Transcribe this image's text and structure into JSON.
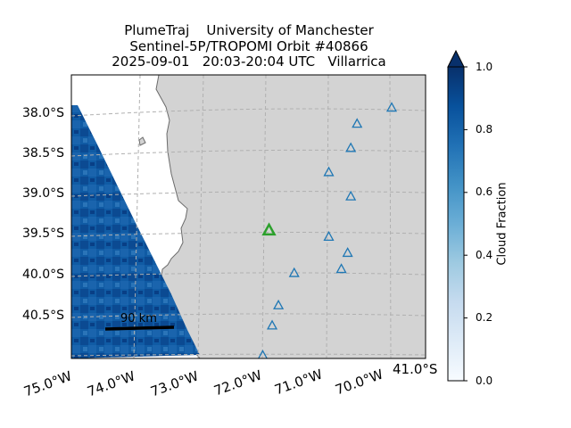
{
  "title": {
    "line1": "PlumeTraj    University of Manchester",
    "line2": "Sentinel-5P/TROPOMI Orbit #40866",
    "line3": "2025-09-01   20:03-20:04 UTC   Villarrica"
  },
  "lat_ticks": [
    "38.0°S",
    "38.5°S",
    "39.0°S",
    "39.5°S",
    "40.0°S",
    "40.5°S"
  ],
  "lon_ticks": [
    "75.0°W",
    "74.0°W",
    "73.0°W",
    "72.0°W",
    "71.0°W",
    "70.0°W"
  ],
  "corner_label": "41.0°S",
  "scale_bar": {
    "label": "90 km"
  },
  "colorbar": {
    "label": "Cloud Fraction",
    "ticks": [
      "0.0",
      "0.2",
      "0.4",
      "0.6",
      "0.8",
      "1.0"
    ],
    "cmap": "Blues",
    "range": [
      0.0,
      1.0
    ],
    "extend": "max"
  },
  "colors": {
    "land": "#d3d3d3",
    "ocean": "#ffffff",
    "volcano_markers": "#1f77b4",
    "target_volcano": "#2ca02c",
    "cloud_dark": "#08306b",
    "cloud_mid": "#2171b5"
  },
  "volcano_markers": [
    {
      "lon": -70.0,
      "lat": -37.9
    },
    {
      "lon": -70.55,
      "lat": -38.1
    },
    {
      "lon": -70.65,
      "lat": -38.4
    },
    {
      "lon": -71.0,
      "lat": -38.7
    },
    {
      "lon": -70.65,
      "lat": -39.0
    },
    {
      "lon": -71.0,
      "lat": -39.5
    },
    {
      "lon": -70.7,
      "lat": -39.7
    },
    {
      "lon": -71.55,
      "lat": -39.95
    },
    {
      "lon": -70.8,
      "lat": -39.9
    },
    {
      "lon": -71.8,
      "lat": -40.35
    },
    {
      "lon": -71.9,
      "lat": -40.6
    },
    {
      "lon": -72.05,
      "lat": -40.97
    }
  ],
  "target_volcano": {
    "name": "Villarrica",
    "lon": -71.95,
    "lat": -39.42
  }
}
